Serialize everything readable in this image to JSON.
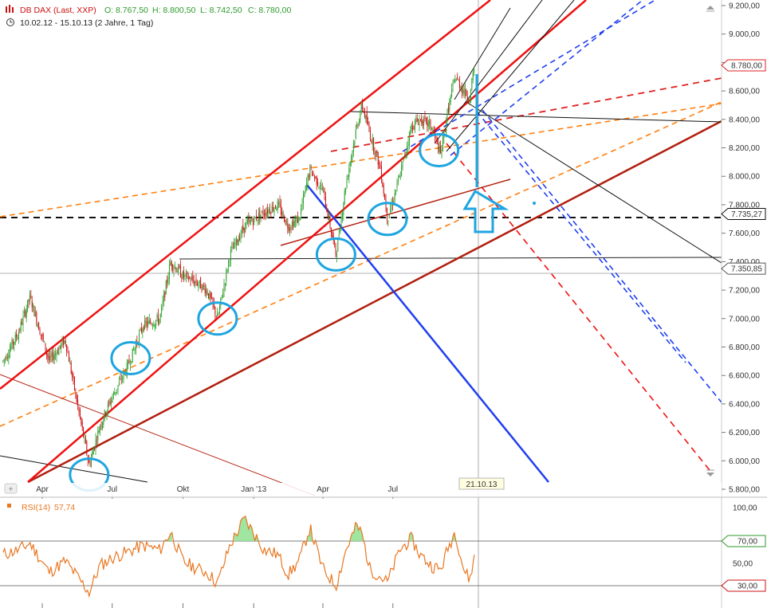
{
  "header": {
    "symbol": "DB DAX (Last, XXP)",
    "ohlc": {
      "open": "O: 8.767,50",
      "high": "H: 8.800,50",
      "low": "L: 8.742,50",
      "close": "C: 8.780,00"
    },
    "period": "10.02.12 - 15.10.13 (2 Jahre, 1 Tag)"
  },
  "rsi_panel": {
    "label": "RSI(14)",
    "value": "57,74"
  },
  "date_marker": "21.10.13",
  "colors": {
    "up_candle": "#2ca02c",
    "down_candle": "#cc1111",
    "channel_red": "#ee1111",
    "trend_darkred": "#b22010",
    "dashed_orange": "#ff7f0e",
    "dashed_blue": "#1f3ff0",
    "circle_cyan": "#1ea5e0",
    "rsi_line": "#e87722",
    "rsi_fill": "#8fe08f"
  },
  "icons": [
    "candlestick-icon",
    "clock-icon",
    "scroll-up-icon",
    "scroll-down-icon",
    "panel-icon"
  ],
  "chart_data": [
    {
      "type": "candlestick",
      "title": "DB DAX (Last, XXP)",
      "subtitle": "10.02.12 - 15.10.13 (2 Jahre, 1 Tag)",
      "x_tick_labels": [
        "Apr",
        "Jul",
        "Okt",
        "Jan '13",
        "Apr",
        "Jul"
      ],
      "y_tick_labels": [
        "5.800,00",
        "6.000,00",
        "6.200,00",
        "6.400,00",
        "6.600,00",
        "6.800,00",
        "7.000,00",
        "7.200,00",
        "7.400,00",
        "7.600,00",
        "7.800,00",
        "8.000,00",
        "8.200,00",
        "8.400,00",
        "8.600,00",
        "8.800,00",
        "9.000,00",
        "9.200,00"
      ],
      "ylim": [
        5800,
        9200
      ],
      "price_labels": [
        {
          "text": "8.780,00",
          "value": 8780
        },
        {
          "text": "7.735,27",
          "value": 7735.27
        },
        {
          "text": "7.350,85",
          "value": 7350.85
        }
      ],
      "horizontal_levels": [
        7735.27,
        7350.85
      ],
      "close_series": [
        {
          "date": "2012-02-10",
          "close": 6700
        },
        {
          "date": "2012-03-01",
          "close": 6900
        },
        {
          "date": "2012-03-16",
          "close": 7150
        },
        {
          "date": "2012-04-10",
          "close": 6700
        },
        {
          "date": "2012-05-01",
          "close": 6850
        },
        {
          "date": "2012-05-20",
          "close": 6300
        },
        {
          "date": "2012-06-01",
          "close": 5970
        },
        {
          "date": "2012-06-15",
          "close": 6250
        },
        {
          "date": "2012-07-01",
          "close": 6450
        },
        {
          "date": "2012-07-20",
          "close": 6650
        },
        {
          "date": "2012-08-10",
          "close": 6950
        },
        {
          "date": "2012-09-01",
          "close": 7000
        },
        {
          "date": "2012-09-15",
          "close": 7400
        },
        {
          "date": "2012-10-01",
          "close": 7300
        },
        {
          "date": "2012-10-20",
          "close": 7250
        },
        {
          "date": "2012-11-01",
          "close": 7200
        },
        {
          "date": "2012-11-15",
          "close": 7000
        },
        {
          "date": "2012-12-01",
          "close": 7450
        },
        {
          "date": "2012-12-20",
          "close": 7650
        },
        {
          "date": "2013-01-15",
          "close": 7750
        },
        {
          "date": "2013-02-01",
          "close": 7800
        },
        {
          "date": "2013-02-15",
          "close": 7650
        },
        {
          "date": "2013-03-01",
          "close": 7700
        },
        {
          "date": "2013-03-15",
          "close": 8050
        },
        {
          "date": "2013-04-01",
          "close": 7900
        },
        {
          "date": "2013-04-18",
          "close": 7450
        },
        {
          "date": "2013-05-01",
          "close": 7950
        },
        {
          "date": "2013-05-15",
          "close": 8350
        },
        {
          "date": "2013-05-22",
          "close": 8500
        },
        {
          "date": "2013-06-01",
          "close": 8300
        },
        {
          "date": "2013-06-15",
          "close": 8050
        },
        {
          "date": "2013-06-24",
          "close": 7700
        },
        {
          "date": "2013-07-10",
          "close": 8000
        },
        {
          "date": "2013-07-25",
          "close": 8350
        },
        {
          "date": "2013-08-05",
          "close": 8400
        },
        {
          "date": "2013-08-20",
          "close": 8350
        },
        {
          "date": "2013-09-01",
          "close": 8150
        },
        {
          "date": "2013-09-10",
          "close": 8450
        },
        {
          "date": "2013-09-20",
          "close": 8700
        },
        {
          "date": "2013-10-01",
          "close": 8600
        },
        {
          "date": "2013-10-09",
          "close": 8550
        },
        {
          "date": "2013-10-15",
          "close": 8780
        }
      ],
      "support_circles_dates": [
        "2012-06-01",
        "2012-07-25",
        "2012-11-15",
        "2013-04-18",
        "2013-06-24",
        "2013-08-30"
      ]
    },
    {
      "type": "line",
      "title": "RSI(14)",
      "ylim": [
        0,
        100
      ],
      "y_tick_labels": [
        "100,00",
        "70,00",
        "50,00",
        "30,00"
      ],
      "reference_levels": [
        70,
        30
      ],
      "last_value": 57.74,
      "series": [
        {
          "date": "2012-02-10",
          "rsi": 58
        },
        {
          "date": "2012-03-01",
          "rsi": 62
        },
        {
          "date": "2012-03-16",
          "rsi": 68
        },
        {
          "date": "2012-04-10",
          "rsi": 42
        },
        {
          "date": "2012-05-01",
          "rsi": 52
        },
        {
          "date": "2012-05-20",
          "rsi": 35
        },
        {
          "date": "2012-06-01",
          "rsi": 24
        },
        {
          "date": "2012-06-15",
          "rsi": 48
        },
        {
          "date": "2012-07-01",
          "rsi": 55
        },
        {
          "date": "2012-07-20",
          "rsi": 60
        },
        {
          "date": "2012-08-10",
          "rsi": 66
        },
        {
          "date": "2012-09-01",
          "rsi": 62
        },
        {
          "date": "2012-09-15",
          "rsi": 78
        },
        {
          "date": "2012-10-01",
          "rsi": 52
        },
        {
          "date": "2012-10-20",
          "rsi": 45
        },
        {
          "date": "2012-11-01",
          "rsi": 42
        },
        {
          "date": "2012-11-15",
          "rsi": 32
        },
        {
          "date": "2012-12-01",
          "rsi": 66
        },
        {
          "date": "2012-12-20",
          "rsi": 90
        },
        {
          "date": "2013-01-15",
          "rsi": 62
        },
        {
          "date": "2013-02-01",
          "rsi": 58
        },
        {
          "date": "2013-02-15",
          "rsi": 40
        },
        {
          "date": "2013-03-01",
          "rsi": 52
        },
        {
          "date": "2013-03-15",
          "rsi": 82
        },
        {
          "date": "2013-04-01",
          "rsi": 45
        },
        {
          "date": "2013-04-18",
          "rsi": 30
        },
        {
          "date": "2013-05-01",
          "rsi": 62
        },
        {
          "date": "2013-05-15",
          "rsi": 84
        },
        {
          "date": "2013-05-22",
          "rsi": 76
        },
        {
          "date": "2013-06-01",
          "rsi": 45
        },
        {
          "date": "2013-06-15",
          "rsi": 38
        },
        {
          "date": "2013-06-24",
          "rsi": 33
        },
        {
          "date": "2013-07-10",
          "rsi": 62
        },
        {
          "date": "2013-07-25",
          "rsi": 72
        },
        {
          "date": "2013-08-05",
          "rsi": 58
        },
        {
          "date": "2013-08-20",
          "rsi": 48
        },
        {
          "date": "2013-09-01",
          "rsi": 44
        },
        {
          "date": "2013-09-10",
          "rsi": 62
        },
        {
          "date": "2013-09-20",
          "rsi": 79
        },
        {
          "date": "2013-10-01",
          "rsi": 45
        },
        {
          "date": "2013-10-09",
          "rsi": 35
        },
        {
          "date": "2013-10-15",
          "rsi": 57.74
        }
      ]
    }
  ]
}
